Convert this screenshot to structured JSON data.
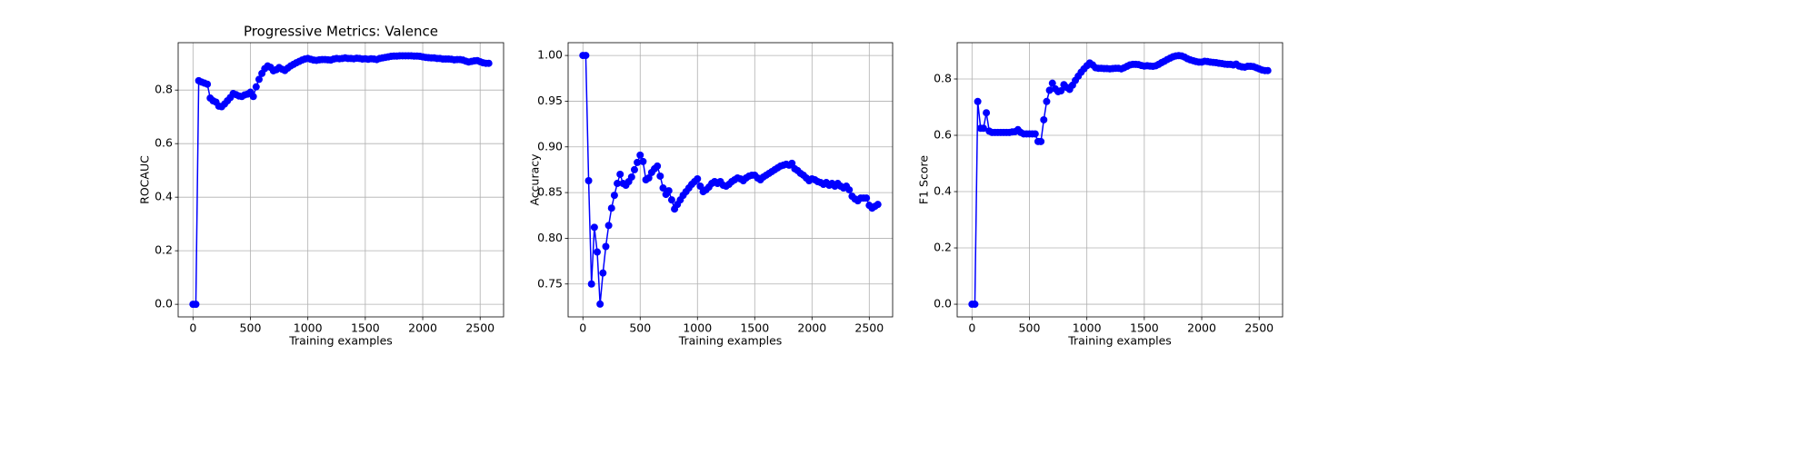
{
  "chart_data": [
    {
      "type": "line",
      "title": "Progressive Metrics: Valence",
      "xlabel": "Training examples",
      "ylabel": "ROCAUC",
      "color": "#0000ff",
      "grid": true,
      "marker": "circle",
      "x": [
        0,
        25,
        50,
        75,
        100,
        125,
        150,
        175,
        200,
        225,
        250,
        275,
        300,
        325,
        350,
        375,
        400,
        425,
        450,
        475,
        500,
        525,
        550,
        575,
        600,
        625,
        650,
        675,
        700,
        725,
        750,
        775,
        800,
        825,
        850,
        875,
        900,
        925,
        950,
        975,
        1000,
        1025,
        1050,
        1075,
        1100,
        1125,
        1150,
        1175,
        1200,
        1225,
        1250,
        1275,
        1300,
        1325,
        1350,
        1375,
        1400,
        1425,
        1450,
        1475,
        1500,
        1525,
        1550,
        1575,
        1600,
        1625,
        1650,
        1675,
        1700,
        1725,
        1750,
        1775,
        1800,
        1825,
        1850,
        1875,
        1900,
        1925,
        1950,
        1975,
        2000,
        2025,
        2050,
        2075,
        2100,
        2125,
        2150,
        2175,
        2200,
        2225,
        2250,
        2275,
        2300,
        2325,
        2350,
        2375,
        2400,
        2425,
        2450,
        2475,
        2500,
        2525,
        2550,
        2575
      ],
      "values": [
        0,
        0,
        0.835,
        0.83,
        0.826,
        0.822,
        0.77,
        0.76,
        0.755,
        0.74,
        0.738,
        0.748,
        0.76,
        0.772,
        0.787,
        0.783,
        0.778,
        0.776,
        0.782,
        0.785,
        0.792,
        0.776,
        0.812,
        0.84,
        0.862,
        0.88,
        0.89,
        0.885,
        0.872,
        0.876,
        0.884,
        0.878,
        0.873,
        0.882,
        0.89,
        0.896,
        0.902,
        0.907,
        0.912,
        0.916,
        0.918,
        0.915,
        0.912,
        0.911,
        0.913,
        0.914,
        0.914,
        0.913,
        0.912,
        0.916,
        0.918,
        0.917,
        0.918,
        0.92,
        0.918,
        0.918,
        0.917,
        0.919,
        0.918,
        0.916,
        0.917,
        0.915,
        0.917,
        0.916,
        0.914,
        0.918,
        0.92,
        0.922,
        0.924,
        0.926,
        0.927,
        0.927,
        0.928,
        0.928,
        0.928,
        0.928,
        0.928,
        0.927,
        0.927,
        0.926,
        0.924,
        0.922,
        0.921,
        0.92,
        0.92,
        0.918,
        0.918,
        0.916,
        0.916,
        0.916,
        0.915,
        0.913,
        0.914,
        0.914,
        0.912,
        0.908,
        0.905,
        0.907,
        0.909,
        0.91,
        0.906,
        0.902,
        0.9,
        0.9
      ],
      "xlim": [
        -129,
        2704
      ],
      "ylim": [
        -0.047,
        0.977
      ],
      "xticks": [
        0,
        500,
        1000,
        1500,
        2000,
        2500
      ],
      "yticks": [
        {
          "value": 0,
          "label": "0.0"
        },
        0.2,
        0.4,
        0.6,
        0.8
      ]
    },
    {
      "type": "line",
      "xlabel": "Training examples",
      "ylabel": "Accuracy",
      "color": "#0000ff",
      "grid": true,
      "marker": "circle",
      "x": [
        0,
        25,
        50,
        75,
        100,
        125,
        150,
        175,
        200,
        225,
        250,
        275,
        300,
        325,
        350,
        375,
        400,
        425,
        450,
        475,
        500,
        525,
        550,
        575,
        600,
        625,
        650,
        675,
        700,
        725,
        750,
        775,
        800,
        825,
        850,
        875,
        900,
        925,
        950,
        975,
        1000,
        1025,
        1050,
        1075,
        1100,
        1125,
        1150,
        1175,
        1200,
        1225,
        1250,
        1275,
        1300,
        1325,
        1350,
        1375,
        1400,
        1425,
        1450,
        1475,
        1500,
        1525,
        1550,
        1575,
        1600,
        1625,
        1650,
        1675,
        1700,
        1725,
        1750,
        1775,
        1800,
        1825,
        1850,
        1875,
        1900,
        1925,
        1950,
        1975,
        2000,
        2025,
        2050,
        2075,
        2100,
        2125,
        2150,
        2175,
        2200,
        2225,
        2250,
        2275,
        2300,
        2325,
        2350,
        2375,
        2400,
        2425,
        2450,
        2475,
        2500,
        2525,
        2550,
        2575
      ],
      "values": [
        1.0,
        1.0,
        0.863,
        0.75,
        0.812,
        0.785,
        0.728,
        0.762,
        0.791,
        0.814,
        0.833,
        0.847,
        0.86,
        0.87,
        0.86,
        0.858,
        0.862,
        0.867,
        0.875,
        0.883,
        0.891,
        0.884,
        0.864,
        0.866,
        0.872,
        0.876,
        0.879,
        0.868,
        0.855,
        0.848,
        0.852,
        0.842,
        0.832,
        0.837,
        0.842,
        0.847,
        0.851,
        0.855,
        0.859,
        0.862,
        0.865,
        0.857,
        0.851,
        0.853,
        0.856,
        0.86,
        0.862,
        0.86,
        0.862,
        0.858,
        0.857,
        0.859,
        0.862,
        0.864,
        0.866,
        0.865,
        0.863,
        0.866,
        0.868,
        0.869,
        0.869,
        0.866,
        0.864,
        0.867,
        0.869,
        0.871,
        0.873,
        0.875,
        0.877,
        0.879,
        0.88,
        0.881,
        0.88,
        0.882,
        0.876,
        0.874,
        0.871,
        0.869,
        0.866,
        0.863,
        0.865,
        0.864,
        0.862,
        0.861,
        0.859,
        0.861,
        0.858,
        0.86,
        0.857,
        0.86,
        0.857,
        0.855,
        0.857,
        0.853,
        0.846,
        0.843,
        0.841,
        0.844,
        0.844,
        0.844,
        0.836,
        0.833,
        0.835,
        0.837
      ],
      "xlim": [
        -129,
        2704
      ],
      "ylim": [
        0.714,
        1.014
      ],
      "xticks": [
        0,
        500,
        1000,
        1500,
        2000,
        2500
      ],
      "yticks": [
        0.75,
        {
          "value": 0.8,
          "label": "0.80"
        },
        0.85,
        {
          "value": 0.9,
          "label": "0.90"
        },
        0.95,
        {
          "value": 1,
          "label": "1.00"
        }
      ]
    },
    {
      "type": "line",
      "xlabel": "Training examples",
      "ylabel": "F1 Score",
      "color": "#0000ff",
      "grid": true,
      "marker": "circle",
      "x": [
        0,
        25,
        50,
        75,
        100,
        125,
        150,
        175,
        200,
        225,
        250,
        275,
        300,
        325,
        350,
        375,
        400,
        425,
        450,
        475,
        500,
        525,
        550,
        575,
        600,
        625,
        650,
        675,
        700,
        725,
        750,
        775,
        800,
        825,
        850,
        875,
        900,
        925,
        950,
        975,
        1000,
        1025,
        1050,
        1075,
        1100,
        1125,
        1150,
        1175,
        1200,
        1225,
        1250,
        1275,
        1300,
        1325,
        1350,
        1375,
        1400,
        1425,
        1450,
        1475,
        1500,
        1525,
        1550,
        1575,
        1600,
        1625,
        1650,
        1675,
        1700,
        1725,
        1750,
        1775,
        1800,
        1825,
        1850,
        1875,
        1900,
        1925,
        1950,
        1975,
        2000,
        2025,
        2050,
        2075,
        2100,
        2125,
        2150,
        2175,
        2200,
        2225,
        2250,
        2275,
        2300,
        2325,
        2350,
        2375,
        2400,
        2425,
        2450,
        2475,
        2500,
        2525,
        2550,
        2575
      ],
      "values": [
        0,
        0,
        0.72,
        0.625,
        0.625,
        0.68,
        0.615,
        0.61,
        0.61,
        0.61,
        0.61,
        0.61,
        0.61,
        0.61,
        0.612,
        0.613,
        0.62,
        0.61,
        0.605,
        0.605,
        0.605,
        0.605,
        0.605,
        0.578,
        0.578,
        0.655,
        0.72,
        0.76,
        0.785,
        0.765,
        0.755,
        0.758,
        0.78,
        0.77,
        0.763,
        0.778,
        0.795,
        0.81,
        0.824,
        0.836,
        0.847,
        0.857,
        0.85,
        0.84,
        0.838,
        0.838,
        0.837,
        0.837,
        0.836,
        0.837,
        0.838,
        0.838,
        0.836,
        0.84,
        0.845,
        0.85,
        0.852,
        0.852,
        0.851,
        0.848,
        0.846,
        0.847,
        0.846,
        0.845,
        0.847,
        0.852,
        0.858,
        0.863,
        0.869,
        0.874,
        0.879,
        0.882,
        0.883,
        0.882,
        0.878,
        0.872,
        0.868,
        0.865,
        0.862,
        0.86,
        0.86,
        0.863,
        0.862,
        0.86,
        0.859,
        0.858,
        0.856,
        0.855,
        0.853,
        0.852,
        0.852,
        0.85,
        0.853,
        0.846,
        0.843,
        0.842,
        0.845,
        0.845,
        0.844,
        0.84,
        0.836,
        0.832,
        0.83,
        0.83
      ],
      "xlim": [
        -129,
        2704
      ],
      "ylim": [
        -0.045,
        0.929
      ],
      "xticks": [
        0,
        500,
        1000,
        1500,
        2000,
        2500
      ],
      "yticks": [
        {
          "value": 0,
          "label": "0.0"
        },
        0.2,
        0.4,
        0.6,
        0.8
      ]
    }
  ]
}
